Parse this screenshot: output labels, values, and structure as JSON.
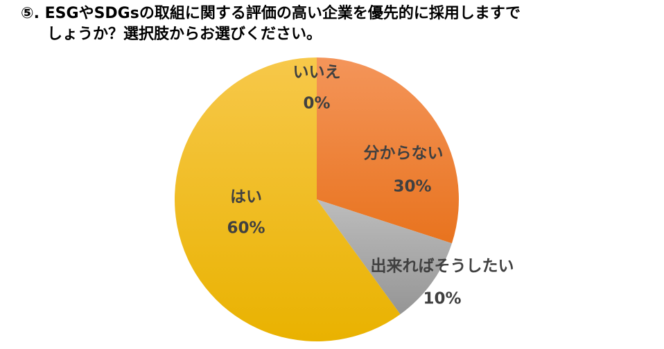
{
  "chart_data": {
    "type": "pie",
    "title": [
      "⑤. ESGやSDGsの取組に関する評価の高い企業を優先的に採用しますで",
      "しょうか？選択肢からお選びください。"
    ],
    "categories": [
      "いいえ",
      "分からない",
      "出来ればそうしたい",
      "はい"
    ],
    "values": [
      0,
      30,
      10,
      60
    ],
    "value_labels": [
      "0%",
      "30%",
      "10%",
      "60%"
    ],
    "colors": [
      "#5b9bd5",
      "#ed7d31",
      "#a5a5a5",
      "#f5c000"
    ]
  }
}
